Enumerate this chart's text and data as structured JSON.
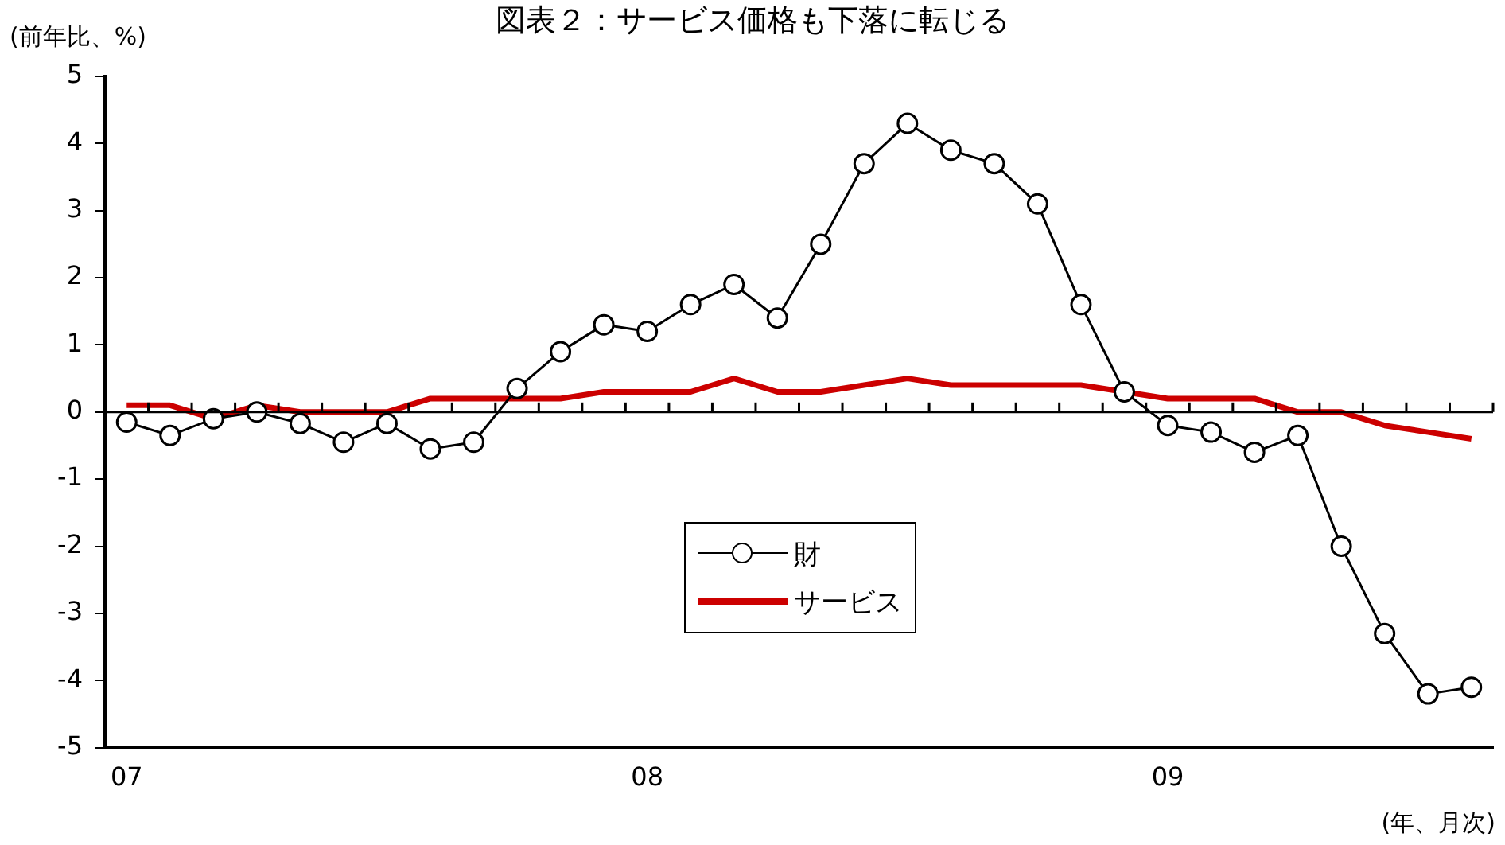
{
  "chart_data": {
    "type": "line",
    "title": "図表２：サービス価格も下落に転じる",
    "ylabel": "(前年比、%)",
    "xlabel": "(年、月次)",
    "categories": [
      "07",
      null,
      null,
      null,
      null,
      null,
      null,
      null,
      null,
      null,
      null,
      null,
      "08",
      null,
      null,
      null,
      null,
      null,
      null,
      null,
      null,
      null,
      null,
      null,
      "09",
      null,
      null,
      null,
      null,
      null,
      null,
      null
    ],
    "series": [
      {
        "name": "財",
        "color": "#000000",
        "marker": "circle",
        "values": [
          -0.15,
          -0.35,
          -0.1,
          0.0,
          -0.17,
          -0.45,
          -0.17,
          -0.55,
          -0.45,
          0.35,
          0.9,
          1.3,
          1.2,
          1.6,
          1.9,
          1.4,
          2.5,
          3.7,
          4.3,
          3.9,
          3.7,
          3.1,
          1.6,
          0.3,
          -0.2,
          -0.3,
          -0.6,
          -0.35,
          -2.0,
          -3.3,
          -4.2,
          -4.1
        ]
      },
      {
        "name": "サービス",
        "color": "#cc0000",
        "marker": "none",
        "values": [
          0.1,
          0.1,
          -0.1,
          0.1,
          0.0,
          0.0,
          0.0,
          0.2,
          0.2,
          0.2,
          0.2,
          0.3,
          0.3,
          0.3,
          0.5,
          0.3,
          0.3,
          0.4,
          0.5,
          0.4,
          0.4,
          0.4,
          0.4,
          0.3,
          0.2,
          0.2,
          0.2,
          0.0,
          0.0,
          -0.2,
          -0.3,
          -0.4
        ]
      }
    ],
    "ylim": [
      -5,
      5
    ],
    "yticks": [
      -5,
      -4,
      -3,
      -2,
      -1,
      0,
      1,
      2,
      3,
      4,
      5
    ],
    "ref_lines": [
      {
        "axis": "y",
        "value": 0,
        "color": "#000000"
      }
    ],
    "grid": false,
    "legend": "center",
    "line_style": "solid"
  }
}
